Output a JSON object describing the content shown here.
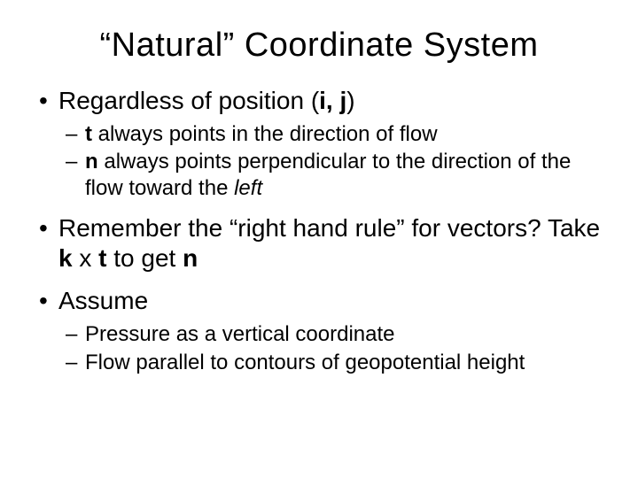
{
  "title": "“Natural” Coordinate System",
  "bullets": {
    "b1": {
      "pre": "Regardless of position (",
      "ij": "i, j",
      "post": ")"
    },
    "b1sub": {
      "s1_t": "t",
      "s1_rest": " always points in the direction of flow",
      "s2_n": "n",
      "s2_mid": " always points perpendicular to the direction of the flow toward the ",
      "s2_left": "left"
    },
    "b2": {
      "pre": "Remember the “right hand rule” for vectors? Take ",
      "k": "k",
      "mid1": " x ",
      "t": "t",
      "mid2": " to get ",
      "n": "n"
    },
    "b3": "Assume",
    "b3sub": {
      "s1": "Pressure as a vertical coordinate",
      "s2": "Flow parallel to contours of geopotential height"
    }
  },
  "style": {
    "background": "#ffffff",
    "text_color": "#000000",
    "title_fontsize": 38,
    "level1_fontsize": 28,
    "level2_fontsize": 24,
    "font_family": "Arial"
  }
}
